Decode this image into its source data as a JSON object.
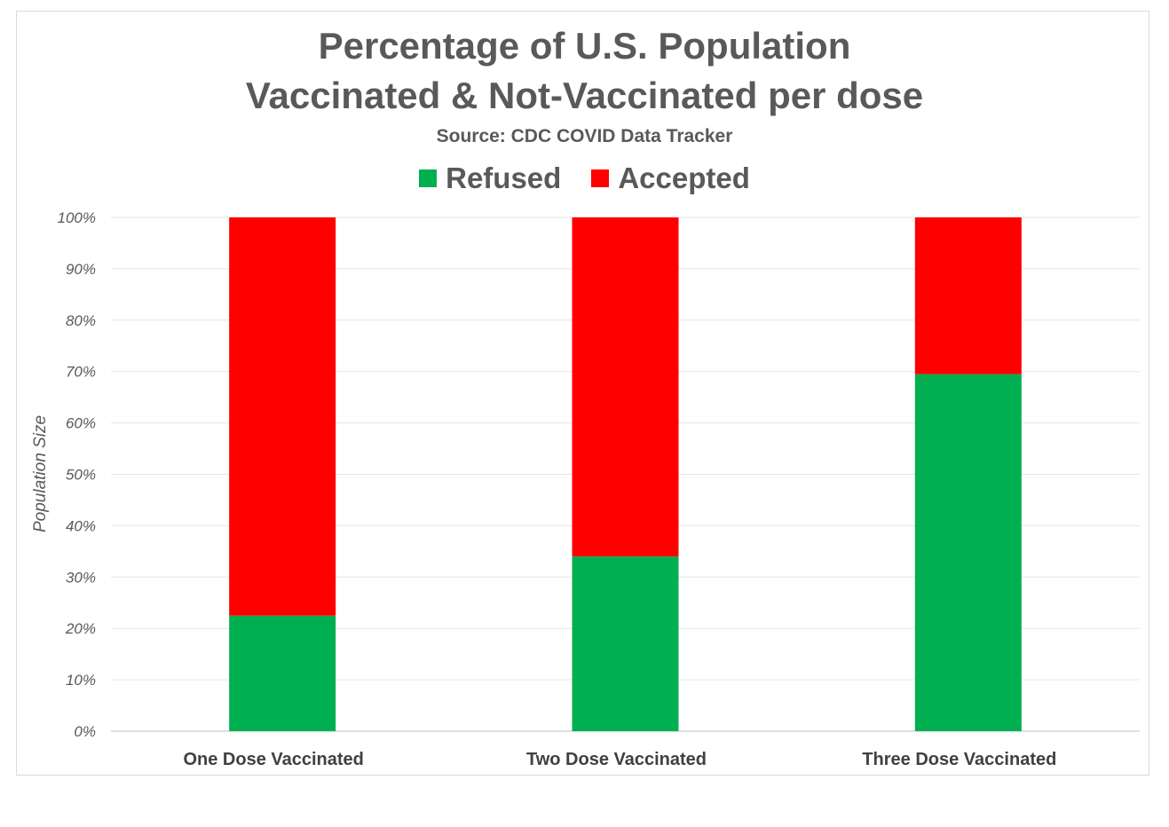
{
  "chart_data": {
    "type": "bar",
    "stacked": true,
    "title": "Percentage of U.S. Population",
    "title_line2": "Vaccinated & Not-Vaccinated per dose",
    "subtitle": "Source: CDC COVID Data Tracker",
    "xlabel": "",
    "ylabel": "Population Size",
    "ylim": [
      0,
      100
    ],
    "yticks": [
      "0%",
      "10%",
      "20%",
      "30%",
      "40%",
      "50%",
      "60%",
      "70%",
      "80%",
      "90%",
      "100%"
    ],
    "grid": true,
    "legend_position": "top",
    "categories": [
      "One Dose Vaccinated",
      "Two Dose Vaccinated",
      "Three Dose Vaccinated"
    ],
    "series": [
      {
        "name": "Refused",
        "color": "#00b050",
        "values": [
          22.5,
          34,
          69.5
        ]
      },
      {
        "name": "Accepted",
        "color": "#ff0000",
        "values": [
          77.5,
          66,
          30.5
        ]
      }
    ]
  }
}
